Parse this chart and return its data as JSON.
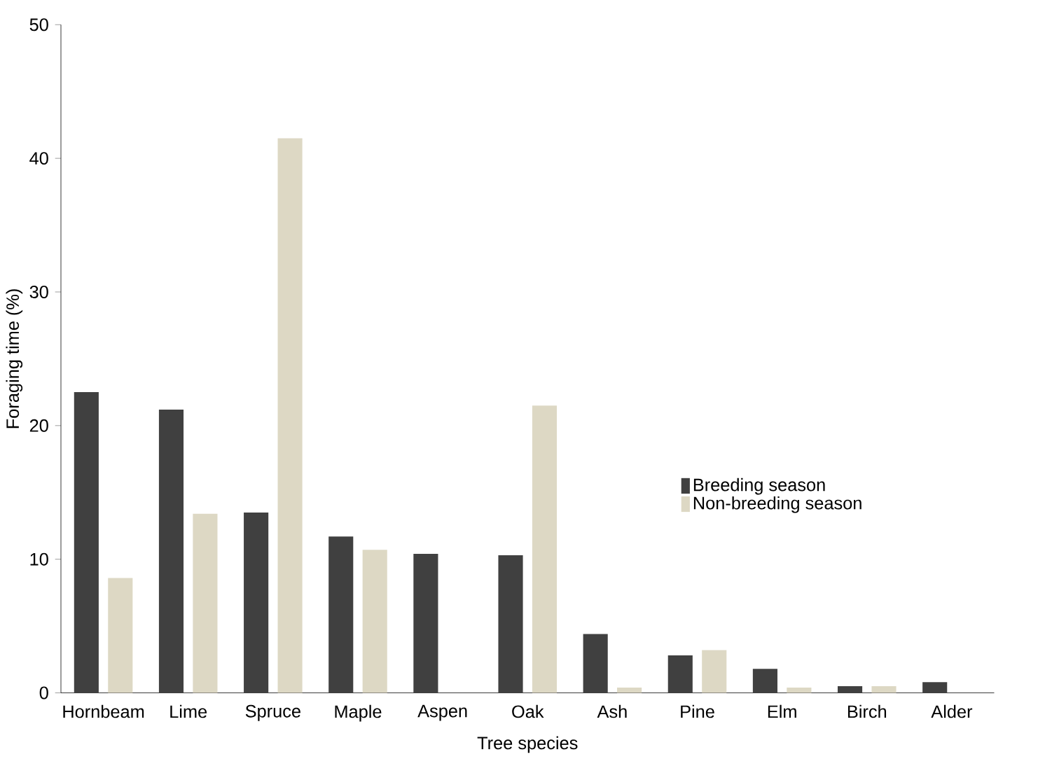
{
  "chart_data": {
    "type": "bar",
    "xlabel": "Tree species",
    "ylabel": "Foraging time (%)",
    "categories": [
      "Hornbeam",
      "Lime",
      "Spruce",
      "Maple",
      "Aspen",
      "Oak",
      "Ash",
      "Pine",
      "Elm",
      "Birch",
      "Alder"
    ],
    "series": [
      {
        "name": "Breeding season",
        "color": "#404040",
        "values": [
          22.5,
          21.2,
          13.5,
          11.7,
          10.4,
          10.3,
          4.4,
          2.8,
          1.8,
          0.5,
          0.8
        ]
      },
      {
        "name": "Non-breeding season",
        "color": "#ddd8c4",
        "values": [
          8.6,
          13.4,
          41.5,
          10.7,
          null,
          21.5,
          0.4,
          3.2,
          0.4,
          0.5,
          null
        ]
      }
    ],
    "ylim": [
      0,
      50
    ],
    "yticks": [
      0,
      10,
      20,
      30,
      40,
      50
    ],
    "legend": "right"
  }
}
